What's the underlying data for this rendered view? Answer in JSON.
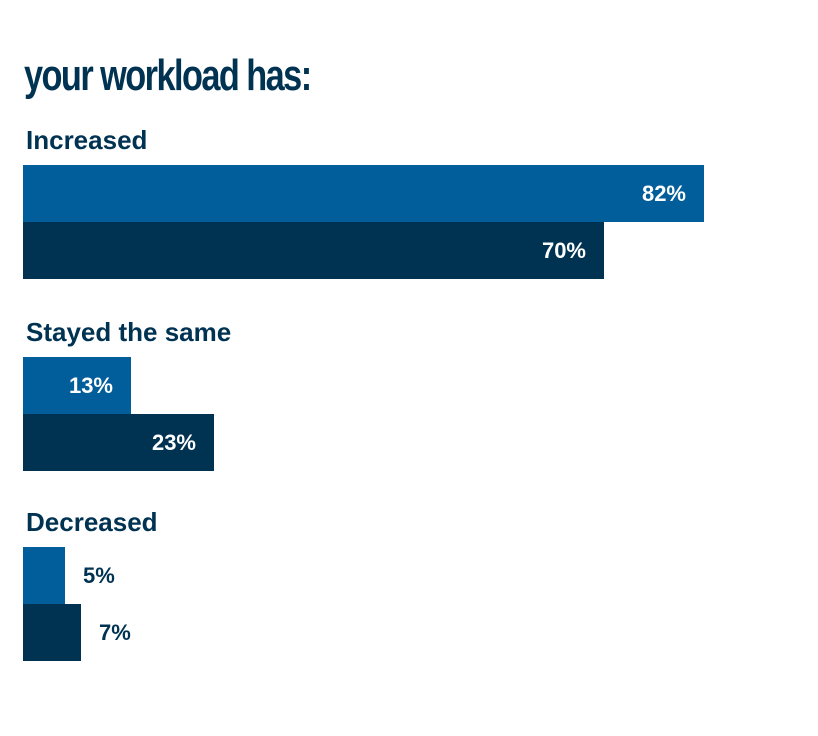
{
  "chart_data": {
    "type": "bar",
    "orientation": "horizontal",
    "title": "your workload has:",
    "categories": [
      "Increased",
      "Stayed the same",
      "Decreased"
    ],
    "series": [
      {
        "color": "#015e9b",
        "values": [
          82,
          13,
          5
        ],
        "labels": [
          "82%",
          "13%",
          "5%"
        ]
      },
      {
        "color": "#003252",
        "values": [
          70,
          23,
          7
        ],
        "labels": [
          "70%",
          "23%",
          "7%"
        ]
      }
    ],
    "xlim": [
      0,
      100
    ],
    "grid": false,
    "legend": "none"
  },
  "colors": {
    "text": "#003252",
    "series_1": "#015e9b",
    "series_2": "#003252",
    "background": "#ffffff"
  }
}
